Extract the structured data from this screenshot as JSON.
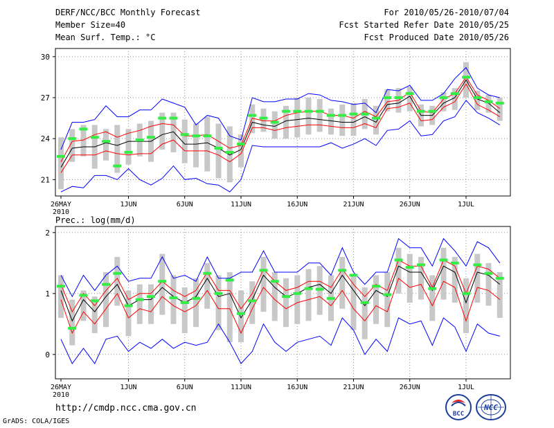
{
  "header": {
    "title_line1": "DERF/NCC/BCC Monthly Forecast",
    "title_line2": "Member Size=40",
    "title_line3": "Mean Surf. Temp.: °C",
    "right_line1": "For 2010/05/26-2010/07/04",
    "right_line2": "Fcst Started Refer Date 2010/05/25",
    "right_line3": "Fcst Produced Date 2010/05/26"
  },
  "footer": {
    "url": "http://cmdp.ncc.cma.gov.cn",
    "grads_credit": "GrADS: COLA/IGES",
    "logo_bcc_text": "BCC",
    "logo_ncc_text": "NCC"
  },
  "chart_data": [
    {
      "type": "line",
      "title": "Mean Surf. Temp.: °C",
      "ylim": [
        19.8,
        30.6
      ],
      "yticks": [
        21,
        24,
        27,
        30
      ],
      "x_tick_labels": [
        "26MAY",
        "1JUN",
        "6JUN",
        "11JUN",
        "16JUN",
        "21JUN",
        "26JUN",
        "1JUL"
      ],
      "x_tick_days": [
        1,
        7,
        12,
        17,
        22,
        27,
        32,
        37
      ],
      "x_sublabel": "2010",
      "days": 40,
      "series": [
        {
          "name": "max",
          "color": "#0000ff",
          "values": [
            20.1,
            20.5,
            20.4,
            21.3,
            21.3,
            21.0,
            21.8,
            21.0,
            20.6,
            21.1,
            22.0,
            21.0,
            21.1,
            20.7,
            20.6,
            20.1,
            21.0,
            23.5,
            23.4,
            23.4,
            23.4,
            23.4,
            23.4,
            23.4,
            23.7,
            23.3,
            23.6,
            24.0,
            23.5,
            24.6,
            24.7,
            25.3,
            24.2,
            24.3,
            25.3,
            25.6,
            26.8,
            25.9,
            25.5,
            25.0
          ]
        },
        {
          "name": "mean_minus_sd",
          "color": "#ff0000",
          "values": [
            21.5,
            22.8,
            22.8,
            22.8,
            23.1,
            22.9,
            22.8,
            22.9,
            22.9,
            23.6,
            23.9,
            23.1,
            23.1,
            23.1,
            22.8,
            22.3,
            22.9,
            24.8,
            24.8,
            24.6,
            24.8,
            24.9,
            25.0,
            25.0,
            24.9,
            24.8,
            24.8,
            25.1,
            24.8,
            26.2,
            26.3,
            26.6,
            25.3,
            25.4,
            26.3,
            26.7,
            28.0,
            26.5,
            26.1,
            25.6
          ]
        },
        {
          "name": "ensemble_mean",
          "color": "#000000",
          "values": [
            21.9,
            23.3,
            23.4,
            23.4,
            23.7,
            23.5,
            23.8,
            23.8,
            23.8,
            24.3,
            24.5,
            23.6,
            23.6,
            23.7,
            23.3,
            22.8,
            23.2,
            25.2,
            25.0,
            24.9,
            25.3,
            25.4,
            25.5,
            25.4,
            25.3,
            25.2,
            25.2,
            25.6,
            25.2,
            26.5,
            26.6,
            27.1,
            25.7,
            25.7,
            26.6,
            27.0,
            28.3,
            26.9,
            26.6,
            25.9
          ]
        },
        {
          "name": "mean_plus_sd",
          "color": "#ff0000",
          "values": [
            22.3,
            23.8,
            23.9,
            24.3,
            24.5,
            24.1,
            24.4,
            24.6,
            24.9,
            25.1,
            25.0,
            24.2,
            24.2,
            24.3,
            23.8,
            23.3,
            23.5,
            25.5,
            25.3,
            25.3,
            25.7,
            25.9,
            26.0,
            26.0,
            25.7,
            25.7,
            25.5,
            26.0,
            25.6,
            26.7,
            26.8,
            27.4,
            26.0,
            25.9,
            26.9,
            27.3,
            28.5,
            27.2,
            26.8,
            26.2
          ]
        },
        {
          "name": "min",
          "color": "#0000ff",
          "values": [
            23.2,
            25.2,
            25.2,
            25.4,
            26.4,
            25.6,
            25.6,
            26.1,
            26.1,
            26.9,
            26.6,
            26.3,
            25.0,
            25.7,
            25.5,
            24.2,
            23.9,
            27.0,
            26.7,
            26.7,
            26.9,
            26.9,
            27.3,
            27.2,
            26.8,
            26.7,
            26.5,
            26.6,
            25.9,
            27.6,
            27.5,
            27.9,
            26.8,
            26.8,
            27.3,
            28.4,
            29.2,
            27.7,
            27.2,
            27.0
          ]
        }
      ],
      "box_lo": [
        20.3,
        22.3,
        22.7,
        21.8,
        22.4,
        21.5,
        22.1,
        22.7,
        22.3,
        23.2,
        23.0,
        22.2,
        21.9,
        21.6,
        21.1,
        20.8,
        21.9,
        24.4,
        24.5,
        24.0,
        24.0,
        24.1,
        24.3,
        24.5,
        24.3,
        24.2,
        24.2,
        24.7,
        24.3,
        26.0,
        25.9,
        26.0,
        24.9,
        25.0,
        26.0,
        26.1,
        27.0,
        26.1,
        25.9,
        25.3
      ],
      "box_hi": [
        24.1,
        24.7,
        25.0,
        25.0,
        24.7,
        25.0,
        24.7,
        25.1,
        25.3,
        25.9,
        25.9,
        25.4,
        25.1,
        25.6,
        25.1,
        24.9,
        24.3,
        26.5,
        26.2,
        26.0,
        26.4,
        27.0,
        27.0,
        26.9,
        26.2,
        26.5,
        26.6,
        26.9,
        26.4,
        27.6,
        27.7,
        27.8,
        26.5,
        26.4,
        27.4,
        27.7,
        29.6,
        27.5,
        27.2,
        27.0
      ],
      "obs": [
        22.7,
        24.0,
        24.7,
        24.1,
        23.8,
        22.0,
        23.0,
        23.9,
        24.1,
        25.5,
        25.5,
        24.3,
        24.2,
        24.2,
        23.3,
        23.0,
        23.6,
        25.7,
        25.5,
        25.2,
        26.0,
        26.0,
        26.0,
        26.0,
        25.7,
        25.7,
        25.8,
        25.8,
        25.5,
        27.0,
        27.0,
        27.3,
        26.0,
        26.0,
        27.0,
        27.3,
        28.5,
        27.0,
        26.7,
        26.6
      ],
      "obs_color": "#33ee44",
      "box_color": "#c8c8c8"
    },
    {
      "type": "line",
      "title": "Prec.: log(mm/d)",
      "ylim": [
        -0.4,
        2.1
      ],
      "yticks": [
        0,
        1,
        2
      ],
      "x_tick_labels": [
        "26MAY",
        "1JUN",
        "6JUN",
        "11JUN",
        "16JUN",
        "21JUN",
        "26JUN",
        "1JUL"
      ],
      "x_tick_days": [
        1,
        7,
        12,
        17,
        22,
        27,
        32,
        37
      ],
      "x_sublabel": "2010",
      "days": 40,
      "series": [
        {
          "name": "max",
          "color": "#0000ff",
          "values": [
            0.25,
            -0.15,
            0.1,
            -0.15,
            0.25,
            0.3,
            0.05,
            0.2,
            0.1,
            0.25,
            0.1,
            0.2,
            0.15,
            0.2,
            0.5,
            0.2,
            -0.15,
            0.05,
            0.5,
            0.2,
            0.05,
            0.2,
            0.25,
            0.3,
            0.15,
            0.6,
            0.4,
            0.0,
            0.25,
            0.05,
            0.6,
            0.5,
            0.55,
            0.15,
            0.6,
            0.45,
            0.05,
            0.5,
            0.35,
            0.3
          ]
        },
        {
          "name": "mean_minus_sd",
          "color": "#ff0000",
          "values": [
            0.9,
            0.35,
            0.7,
            0.5,
            0.75,
            1.0,
            0.6,
            0.75,
            0.7,
            0.95,
            0.8,
            0.7,
            0.8,
            1.05,
            0.75,
            0.75,
            0.35,
            0.75,
            1.1,
            0.9,
            0.75,
            0.85,
            0.9,
            0.95,
            0.8,
            1.05,
            0.75,
            0.55,
            0.8,
            0.7,
            1.25,
            1.1,
            1.15,
            0.8,
            1.2,
            1.1,
            0.55,
            1.1,
            1.05,
            0.9
          ]
        },
        {
          "name": "ensemble_mean",
          "color": "#000000",
          "values": [
            1.05,
            0.55,
            0.9,
            0.7,
            0.95,
            1.15,
            0.8,
            0.9,
            0.9,
            1.1,
            0.95,
            0.85,
            0.95,
            1.25,
            0.95,
            1.0,
            0.6,
            0.9,
            1.3,
            1.1,
            0.95,
            1.0,
            1.1,
            1.15,
            1.0,
            1.3,
            1.05,
            0.8,
            1.05,
            0.95,
            1.45,
            1.35,
            1.35,
            1.05,
            1.45,
            1.35,
            0.85,
            1.35,
            1.3,
            1.15
          ]
        },
        {
          "name": "mean_plus_sd",
          "color": "#ff0000",
          "values": [
            1.15,
            0.7,
            1.0,
            0.8,
            1.05,
            1.25,
            0.9,
            1.0,
            1.0,
            1.2,
            1.05,
            0.95,
            1.05,
            1.35,
            1.05,
            1.05,
            0.75,
            1.0,
            1.4,
            1.2,
            1.05,
            1.1,
            1.2,
            1.2,
            1.1,
            1.4,
            1.15,
            0.95,
            1.15,
            1.05,
            1.55,
            1.45,
            1.45,
            1.1,
            1.55,
            1.45,
            1.0,
            1.45,
            1.4,
            1.25
          ]
        },
        {
          "name": "min",
          "color": "#0000ff",
          "values": [
            1.3,
            0.95,
            1.3,
            1.05,
            1.3,
            1.45,
            1.2,
            1.25,
            1.25,
            1.6,
            1.25,
            1.3,
            1.2,
            1.6,
            1.25,
            1.25,
            1.35,
            1.35,
            1.7,
            1.35,
            1.35,
            1.35,
            1.5,
            1.5,
            1.3,
            1.75,
            1.35,
            1.15,
            1.35,
            1.35,
            1.9,
            1.75,
            1.75,
            1.45,
            1.9,
            1.7,
            1.45,
            1.85,
            1.75,
            1.5
          ]
        }
      ],
      "box_lo": [
        0.6,
        0.15,
        0.55,
        0.35,
        0.45,
        0.8,
        0.3,
        0.5,
        0.5,
        0.65,
        0.5,
        0.35,
        0.45,
        0.75,
        0.4,
        0.2,
        0.2,
        0.5,
        0.7,
        0.55,
        0.45,
        0.5,
        0.55,
        0.65,
        0.55,
        0.75,
        0.4,
        0.25,
        0.5,
        0.45,
        1.0,
        0.85,
        0.9,
        0.55,
        0.9,
        0.85,
        0.35,
        0.85,
        0.8,
        0.6
      ],
      "box_hi": [
        1.3,
        0.9,
        1.05,
        0.95,
        1.35,
        1.6,
        1.05,
        1.15,
        1.15,
        1.65,
        1.3,
        1.1,
        1.25,
        1.5,
        1.3,
        1.35,
        1.05,
        1.2,
        1.6,
        1.35,
        1.25,
        1.3,
        1.4,
        1.45,
        1.3,
        1.6,
        1.3,
        1.1,
        1.3,
        1.35,
        1.75,
        1.65,
        1.6,
        1.3,
        1.75,
        1.6,
        1.25,
        1.65,
        1.5,
        1.35
      ],
      "obs": [
        1.12,
        0.43,
        0.97,
        0.88,
        1.15,
        1.33,
        0.8,
        0.9,
        0.95,
        1.2,
        0.93,
        0.85,
        0.92,
        1.33,
        1.0,
        1.22,
        0.67,
        0.88,
        1.38,
        1.2,
        0.95,
        1.0,
        1.08,
        1.07,
        0.92,
        1.38,
        1.3,
        0.85,
        1.12,
        0.98,
        1.55,
        1.43,
        1.47,
        1.08,
        1.55,
        1.5,
        1.0,
        1.47,
        1.33,
        1.25
      ],
      "obs_color": "#33ee44",
      "box_color": "#c8c8c8"
    }
  ]
}
